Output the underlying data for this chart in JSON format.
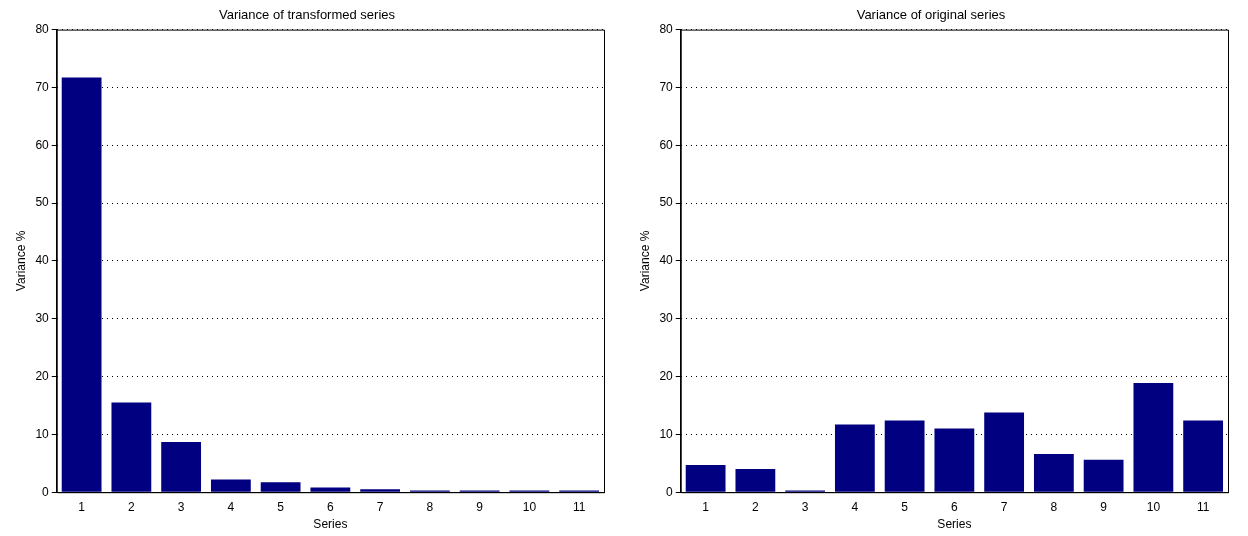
{
  "chart_data": [
    {
      "type": "bar",
      "title": "Variance of transformed series",
      "xlabel": "Series",
      "ylabel": "Variance %",
      "categories": [
        "1",
        "2",
        "3",
        "4",
        "5",
        "6",
        "7",
        "8",
        "9",
        "10",
        "11"
      ],
      "values": [
        71.7,
        15.5,
        8.7,
        2.2,
        1.7,
        0.8,
        0.5,
        0.3,
        0.3,
        0.3,
        0.3
      ],
      "color": "#000080",
      "ylim": [
        0,
        80
      ],
      "yticks": [
        0,
        10,
        20,
        30,
        40,
        50,
        60,
        70,
        80
      ],
      "grid": "y"
    },
    {
      "type": "bar",
      "title": "Variance of original series",
      "xlabel": "Series",
      "ylabel": "Variance %",
      "categories": [
        "1",
        "2",
        "3",
        "4",
        "5",
        "6",
        "7",
        "8",
        "9",
        "10",
        "11"
      ],
      "values": [
        4.7,
        4.0,
        0.3,
        11.7,
        12.4,
        11.0,
        13.8,
        6.6,
        5.6,
        18.9,
        12.4
      ],
      "color": "#000080",
      "ylim": [
        0,
        80
      ],
      "yticks": [
        0,
        10,
        20,
        30,
        40,
        50,
        60,
        70,
        80
      ],
      "grid": "y"
    }
  ]
}
